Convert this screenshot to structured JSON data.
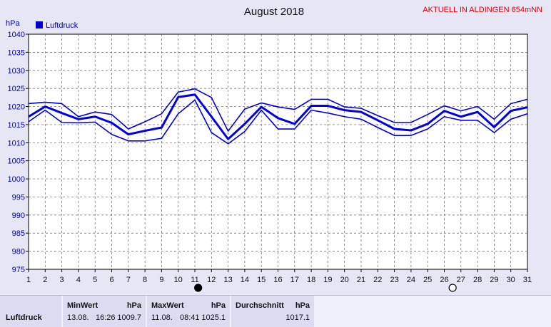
{
  "chart_data": {
    "type": "line",
    "title": "August 2018",
    "corner_label": "AKTUELL IN ALDINGEN 654mNN",
    "ylabel": "hPa",
    "legend": "Luftdruck",
    "ylim": [
      975,
      1040
    ],
    "yticks": [
      975,
      980,
      985,
      990,
      995,
      1000,
      1005,
      1010,
      1015,
      1020,
      1025,
      1030,
      1035,
      1040
    ],
    "x": [
      1,
      2,
      3,
      4,
      5,
      6,
      7,
      8,
      9,
      10,
      11,
      12,
      13,
      14,
      15,
      16,
      17,
      18,
      19,
      20,
      21,
      22,
      23,
      24,
      25,
      26,
      27,
      28,
      29,
      30,
      31
    ],
    "series": [
      {
        "role": "max",
        "values": [
          1020.8,
          1021.2,
          1020.8,
          1017.2,
          1018.5,
          1017.8,
          1013.8,
          1015.8,
          1018.0,
          1024.0,
          1024.9,
          1022.5,
          1013.2,
          1019.3,
          1021.0,
          1019.9,
          1019.2,
          1022.0,
          1022.0,
          1019.9,
          1019.5,
          1017.5,
          1015.6,
          1015.6,
          1017.8,
          1020.2,
          1018.8,
          1020.0,
          1016.5,
          1020.8,
          1022.0
        ]
      },
      {
        "role": "avg",
        "values": [
          1017.2,
          1020.0,
          1018.2,
          1016.5,
          1017.2,
          1015.5,
          1012.3,
          1013.3,
          1014.2,
          1022.6,
          1023.3,
          1017.2,
          1011.0,
          1015.2,
          1019.9,
          1016.8,
          1015.2,
          1020.2,
          1020.2,
          1019.0,
          1018.5,
          1016.2,
          1013.8,
          1013.4,
          1015.2,
          1018.8,
          1017.2,
          1018.5,
          1014.3,
          1018.8,
          1019.8
        ]
      },
      {
        "role": "min",
        "values": [
          1015.8,
          1019.0,
          1015.6,
          1015.5,
          1015.7,
          1012.3,
          1010.5,
          1010.5,
          1011.2,
          1018.0,
          1021.8,
          1012.8,
          1009.7,
          1013.1,
          1019.0,
          1013.8,
          1013.8,
          1019.0,
          1018.2,
          1017.2,
          1016.5,
          1014.2,
          1012.0,
          1012.0,
          1013.8,
          1017.2,
          1016.2,
          1016.2,
          1012.8,
          1016.5,
          1018.0
        ]
      }
    ],
    "grid": true,
    "moon_phase_days": [
      11.2,
      26.5
    ]
  },
  "stats": {
    "row_label": "Luftdruck",
    "min": {
      "header": "MinWert",
      "unit": "hPa",
      "date": "13.08.",
      "time": "16:26",
      "value": "1009.7"
    },
    "max": {
      "header": "MaxWert",
      "unit": "hPa",
      "date": "11.08.",
      "time": "08:41",
      "value": "1025.1"
    },
    "avg": {
      "header": "Durchschnitt",
      "unit": "hPa",
      "value": "1017.1"
    }
  },
  "colors": {
    "line": "#0000e0",
    "grid": "#606060",
    "axis_text": "#0000c8",
    "corner": "#e0000a"
  }
}
